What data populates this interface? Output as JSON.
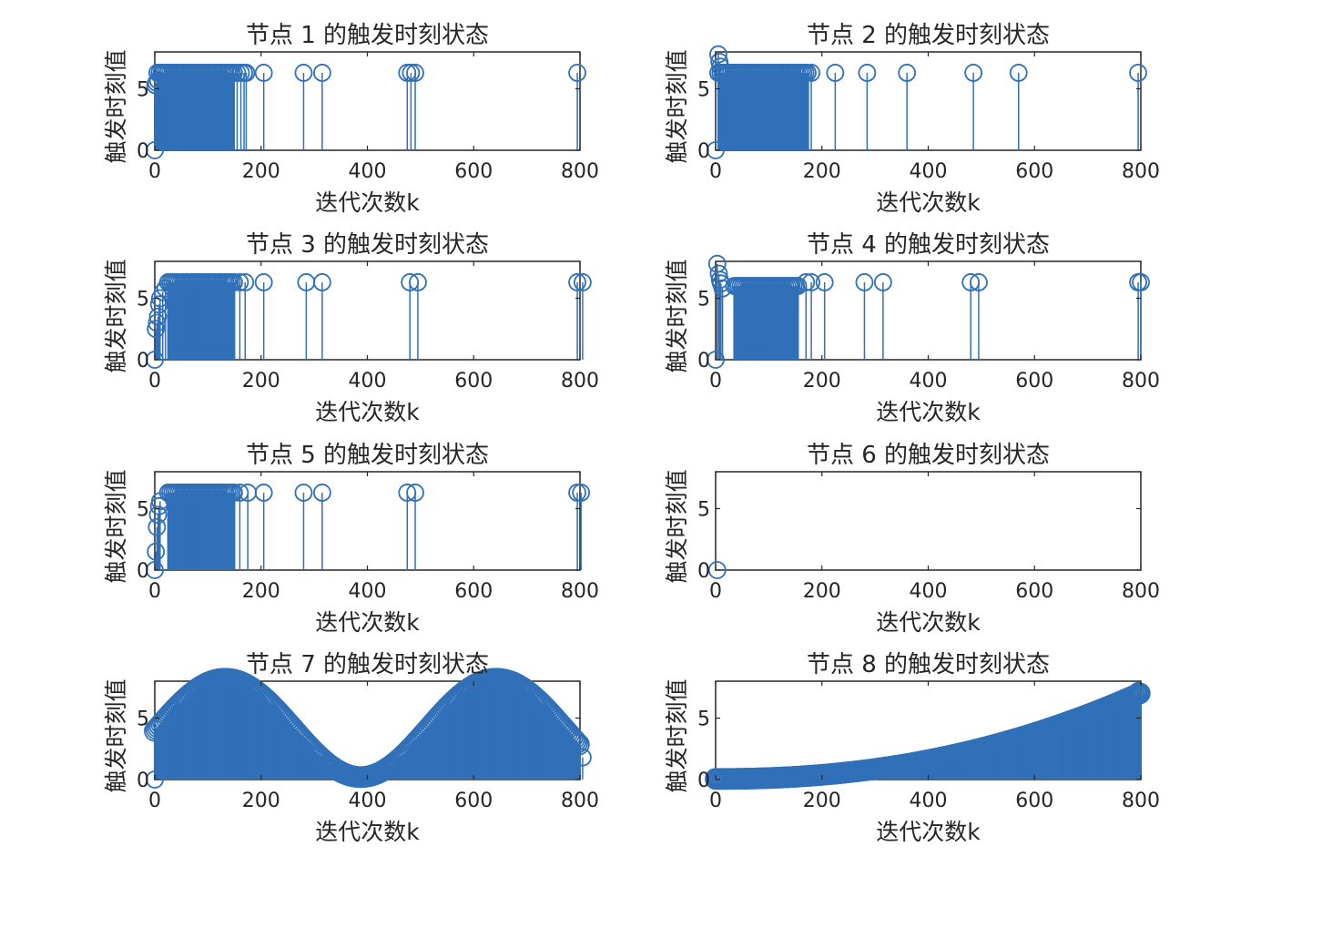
{
  "figure": {
    "background": "#ffffff"
  },
  "style": {
    "series_color": "#3070b8",
    "axis_color": "#262626"
  },
  "chart_data": [
    {
      "type": "stem",
      "title": "节点 1 的触发时刻状态",
      "xlabel": "迭代次数k",
      "ylabel": "触发时刻值",
      "xlim": [
        0,
        800
      ],
      "ylim": [
        0,
        8
      ],
      "xticks": [
        0,
        200,
        400,
        600,
        800
      ],
      "yticks": [
        0,
        5
      ],
      "series": [
        {
          "name": "node1",
          "pattern": "dense_band",
          "x_range": [
            5,
            150
          ],
          "value": 6.3
        },
        {
          "name": "node1-stems",
          "x": [
            0,
            1,
            3,
            6,
            155,
            162,
            168,
            172,
            205,
            280,
            315,
            475,
            482,
            490,
            795
          ],
          "y": [
            0,
            5.3,
            5.5,
            5.7,
            6.3,
            6.3,
            6.3,
            6.3,
            6.3,
            6.3,
            6.3,
            6.3,
            6.3,
            6.3,
            6.3
          ]
        }
      ]
    },
    {
      "type": "stem",
      "title": "节点 2 的触发时刻状态",
      "xlabel": "迭代次数k",
      "ylabel": "触发时刻值",
      "xlim": [
        0,
        800
      ],
      "ylim": [
        0,
        8
      ],
      "xticks": [
        0,
        200,
        400,
        600,
        800
      ],
      "yticks": [
        0,
        5
      ],
      "series": [
        {
          "name": "node2",
          "pattern": "dense_band",
          "x_range": [
            5,
            175
          ],
          "value": 6.3
        },
        {
          "name": "node2-stems",
          "x": [
            0,
            5,
            7,
            9,
            180,
            225,
            285,
            360,
            485,
            570,
            795
          ],
          "y": [
            0,
            7.8,
            7.2,
            6.8,
            6.3,
            6.3,
            6.3,
            6.3,
            6.3,
            6.3,
            6.3
          ]
        }
      ]
    },
    {
      "type": "stem",
      "title": "节点 3 的触发时刻状态",
      "xlabel": "迭代次数k",
      "ylabel": "触发时刻值",
      "xlim": [
        0,
        800
      ],
      "ylim": [
        0,
        8
      ],
      "xticks": [
        0,
        200,
        400,
        600,
        800
      ],
      "yticks": [
        0,
        5
      ],
      "series": [
        {
          "name": "node3",
          "pattern": "dense_band",
          "x_range": [
            25,
            150
          ],
          "value": 6.3
        },
        {
          "name": "node3-stems",
          "x": [
            0,
            2,
            4,
            6,
            8,
            10,
            15,
            20,
            160,
            170,
            205,
            285,
            315,
            480,
            495,
            795,
            805
          ],
          "y": [
            0,
            2.5,
            3.0,
            3.5,
            4.5,
            5.0,
            5.5,
            5.8,
            6.3,
            6.3,
            6.3,
            6.3,
            6.3,
            6.3,
            6.3,
            6.3,
            6.3
          ]
        }
      ]
    },
    {
      "type": "stem",
      "title": "节点 4 的触发时刻状态",
      "xlabel": "迭代次数k",
      "ylabel": "触发时刻值",
      "xlim": [
        0,
        800
      ],
      "ylim": [
        0,
        8
      ],
      "xticks": [
        0,
        200,
        400,
        600,
        800
      ],
      "yticks": [
        0,
        5
      ],
      "series": [
        {
          "name": "node4",
          "pattern": "dense_band",
          "x_range": [
            35,
            155
          ],
          "value": 6.0
        },
        {
          "name": "node4-stems",
          "x": [
            0,
            3,
            6,
            8,
            10,
            13,
            170,
            180,
            205,
            280,
            315,
            480,
            495,
            795,
            800
          ],
          "y": [
            0,
            7.8,
            7.0,
            6.5,
            6.2,
            5.8,
            6.3,
            6.3,
            6.3,
            6.3,
            6.3,
            6.3,
            6.3,
            6.3,
            6.3
          ]
        }
      ]
    },
    {
      "type": "stem",
      "title": "节点 5 的触发时刻状态",
      "xlabel": "迭代次数k",
      "ylabel": "触发时刻值",
      "xlim": [
        0,
        800
      ],
      "ylim": [
        0,
        8
      ],
      "xticks": [
        0,
        200,
        400,
        600,
        800
      ],
      "yticks": [
        0,
        5
      ],
      "series": [
        {
          "name": "node5",
          "pattern": "dense_band",
          "x_range": [
            25,
            150
          ],
          "value": 6.3
        },
        {
          "name": "node5-stems",
          "x": [
            0,
            2,
            4,
            6,
            8,
            10,
            160,
            175,
            205,
            280,
            315,
            475,
            490,
            795,
            802
          ],
          "y": [
            0,
            1.5,
            3.5,
            4.5,
            5.2,
            5.6,
            6.3,
            6.3,
            6.3,
            6.3,
            6.3,
            6.3,
            6.3,
            6.3,
            6.3
          ]
        }
      ]
    },
    {
      "type": "stem",
      "title": "节点 6 的触发时刻状态",
      "xlabel": "迭代次数k",
      "ylabel": "触发时刻值",
      "xlim": [
        0,
        800
      ],
      "ylim": [
        0,
        8
      ],
      "xticks": [
        0,
        200,
        400,
        600,
        800
      ],
      "yticks": [
        0,
        5
      ],
      "series": [
        {
          "name": "node6-stems",
          "x": [
            3
          ],
          "y": [
            0
          ]
        }
      ]
    },
    {
      "type": "stem",
      "title": "节点 7 的触发时刻状态",
      "xlabel": "迭代次数k",
      "ylabel": "触发时刻值",
      "xlim": [
        0,
        800
      ],
      "ylim": [
        0,
        8
      ],
      "xticks": [
        0,
        200,
        400,
        600,
        800
      ],
      "yticks": [
        0,
        5
      ],
      "series": [
        {
          "name": "node7",
          "pattern": "dense_curve",
          "x_range": [
            0,
            800
          ],
          "curve": "4.2 + 4.0*sin(2*pi*(x-5)/510)"
        },
        {
          "name": "node7-stems",
          "x": [
            0,
            805
          ],
          "y": [
            0,
            1.8
          ]
        }
      ]
    },
    {
      "type": "stem",
      "title": "节点 8 的触发时刻状态",
      "xlabel": "迭代次数k",
      "ylabel": "触发时刻值",
      "xlim": [
        0,
        800
      ],
      "ylim": [
        0,
        8
      ],
      "xticks": [
        0,
        200,
        400,
        600,
        800
      ],
      "yticks": [
        0,
        5
      ],
      "series": [
        {
          "name": "node8",
          "pattern": "dense_curve",
          "x_range": [
            0,
            800
          ],
          "curve": "0.05 + 7.0*(x/800)^2.2"
        },
        {
          "name": "node8-stems",
          "x": [
            0,
            795,
            800
          ],
          "y": [
            0,
            7.2,
            6.9
          ]
        }
      ]
    }
  ]
}
